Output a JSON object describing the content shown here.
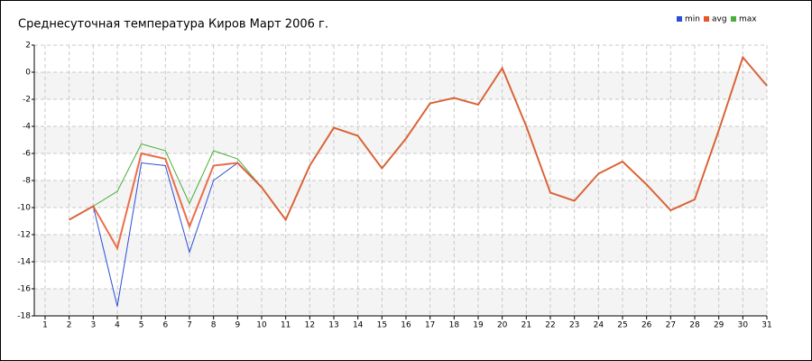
{
  "chart_data": {
    "type": "line",
    "title": "Среднесуточная температура Киров  Март 2006 г.",
    "x": [
      1,
      2,
      3,
      4,
      5,
      6,
      7,
      8,
      9,
      10,
      11,
      12,
      13,
      14,
      15,
      16,
      17,
      18,
      19,
      20,
      21,
      22,
      23,
      24,
      25,
      26,
      27,
      28,
      29,
      30,
      31
    ],
    "xlim": [
      1,
      31
    ],
    "xticks": [
      1,
      2,
      3,
      4,
      5,
      6,
      7,
      8,
      9,
      10,
      11,
      12,
      13,
      14,
      15,
      16,
      17,
      18,
      19,
      20,
      21,
      22,
      23,
      24,
      25,
      26,
      27,
      28,
      29,
      30,
      31
    ],
    "ylim": [
      -18,
      2
    ],
    "yticks": [
      -18,
      -16,
      -14,
      -12,
      -10,
      -8,
      -6,
      -4,
      -2,
      0,
      2
    ],
    "grid": true,
    "legend": "top-right",
    "series": [
      {
        "name": "min",
        "color": "#2a4fd6",
        "values": [
          null,
          -10.9,
          -9.9,
          -17.3,
          -6.7,
          -6.9,
          -13.3,
          -8.0,
          -6.7,
          -8.5,
          -10.9,
          -6.9,
          -4.1,
          -4.7,
          -7.1,
          -4.9,
          -2.3,
          -1.9,
          -2.4,
          0.3,
          -4.0,
          -8.9,
          -9.5,
          -7.5,
          -6.6,
          -8.3,
          -10.2,
          -9.4,
          -4.3,
          1.1,
          -1.0
        ]
      },
      {
        "name": "max",
        "color": "#4caf3a",
        "values": [
          null,
          -10.9,
          -9.9,
          -8.8,
          -5.3,
          -5.8,
          -9.7,
          -5.8,
          -6.4,
          -8.5,
          -10.9,
          -6.9,
          -4.1,
          -4.7,
          -7.1,
          -4.9,
          -2.3,
          -1.9,
          -2.4,
          0.3,
          -4.0,
          -8.9,
          -9.5,
          -7.5,
          -6.6,
          -8.3,
          -10.2,
          -9.4,
          -4.3,
          1.1,
          -1.0
        ]
      },
      {
        "name": "avg",
        "color": "#e8562a",
        "values": [
          null,
          -10.9,
          -9.9,
          -13.0,
          -6.0,
          -6.4,
          -11.4,
          -6.9,
          -6.7,
          -8.5,
          -10.9,
          -6.9,
          -4.1,
          -4.7,
          -7.1,
          -4.9,
          -2.3,
          -1.9,
          -2.4,
          0.3,
          -4.0,
          -8.9,
          -9.5,
          -7.5,
          -6.6,
          -8.3,
          -10.2,
          -9.4,
          -4.3,
          1.1,
          -1.0
        ]
      }
    ]
  }
}
